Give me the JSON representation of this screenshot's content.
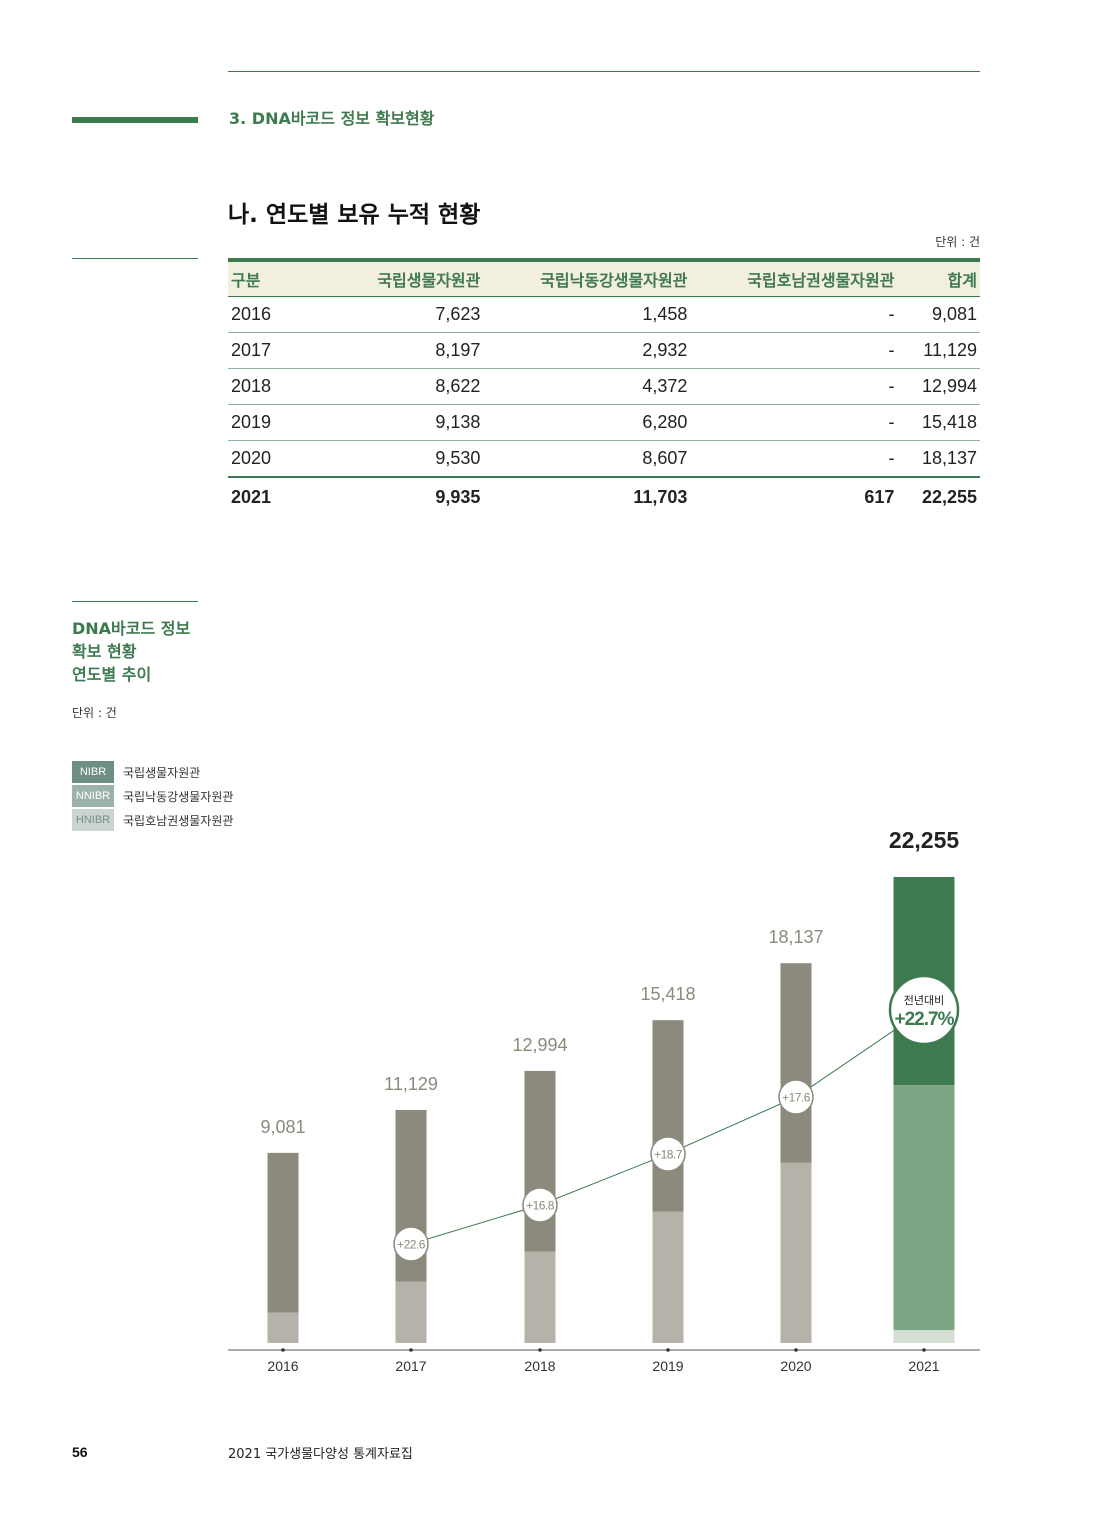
{
  "header": {
    "section_title": "3. DNA바코드 정보 확보현황",
    "main_title": "나. 연도별 보유 누적 현황",
    "unit": "단위 : 건"
  },
  "table": {
    "headers": [
      "구분",
      "국립생물자원관",
      "국립낙동강생물자원관",
      "국립호남권생물자원관",
      "합계"
    ],
    "rows": [
      [
        "2016",
        "7,623",
        "1,458",
        "-",
        "9,081"
      ],
      [
        "2017",
        "8,197",
        "2,932",
        "-",
        "11,129"
      ],
      [
        "2018",
        "8,622",
        "4,372",
        "-",
        "12,994"
      ],
      [
        "2019",
        "9,138",
        "6,280",
        "-",
        "15,418"
      ],
      [
        "2020",
        "9,530",
        "8,607",
        "-",
        "18,137"
      ],
      [
        "2021",
        "9,935",
        "11,703",
        "617",
        "22,255"
      ]
    ]
  },
  "sidebar": {
    "title_line1": "DNA바코드 정보",
    "title_line2": "확보 현황",
    "title_line3": "연도별 추이",
    "unit": "단위 : 건",
    "legend": [
      {
        "code": "NIBR",
        "label": "국립생물자원관",
        "color": "#6f8f86"
      },
      {
        "code": "NNIBR",
        "label": "국립낙동강생물자원관",
        "color": "#9bb3aa"
      },
      {
        "code": "HNIBR",
        "label": "국립호남권생물자원관",
        "color": "#c9d6d0"
      }
    ]
  },
  "chart_data": {
    "type": "bar",
    "categories": [
      "2016",
      "2017",
      "2018",
      "2019",
      "2020",
      "2021"
    ],
    "series": [
      {
        "name": "NIBR",
        "values": [
          7623,
          8197,
          8622,
          9138,
          9530,
          9935
        ]
      },
      {
        "name": "NNIBR",
        "values": [
          1458,
          2932,
          4372,
          6280,
          8607,
          11703
        ]
      },
      {
        "name": "HNIBR",
        "values": [
          0,
          0,
          0,
          0,
          0,
          617
        ]
      }
    ],
    "totals": [
      9081,
      11129,
      12994,
      15418,
      18137,
      22255
    ],
    "total_labels": [
      "9,081",
      "11,129",
      "12,994",
      "15,418",
      "18,137",
      "22,255"
    ],
    "growth_labels": [
      "",
      "+22.6",
      "+16.8",
      "+18.7",
      "+17.6",
      "+22.7%"
    ],
    "growth_values": [
      null,
      22.6,
      16.8,
      18.7,
      17.6,
      22.7
    ],
    "growth_caption": "전년대비",
    "colors": {
      "nibr": "#8b8a7c",
      "nnibr": "#b6b2aa",
      "hnibr": "#e8e6e2",
      "nibr_2021": "#3f7a50",
      "nnibr_2021": "#7ea583",
      "hnibr_2021": "#d4dfd3",
      "line": "#3e7a4f"
    }
  },
  "footer": {
    "page_number": "56",
    "publication": "2021 국가생물다양성 통계자료집"
  }
}
